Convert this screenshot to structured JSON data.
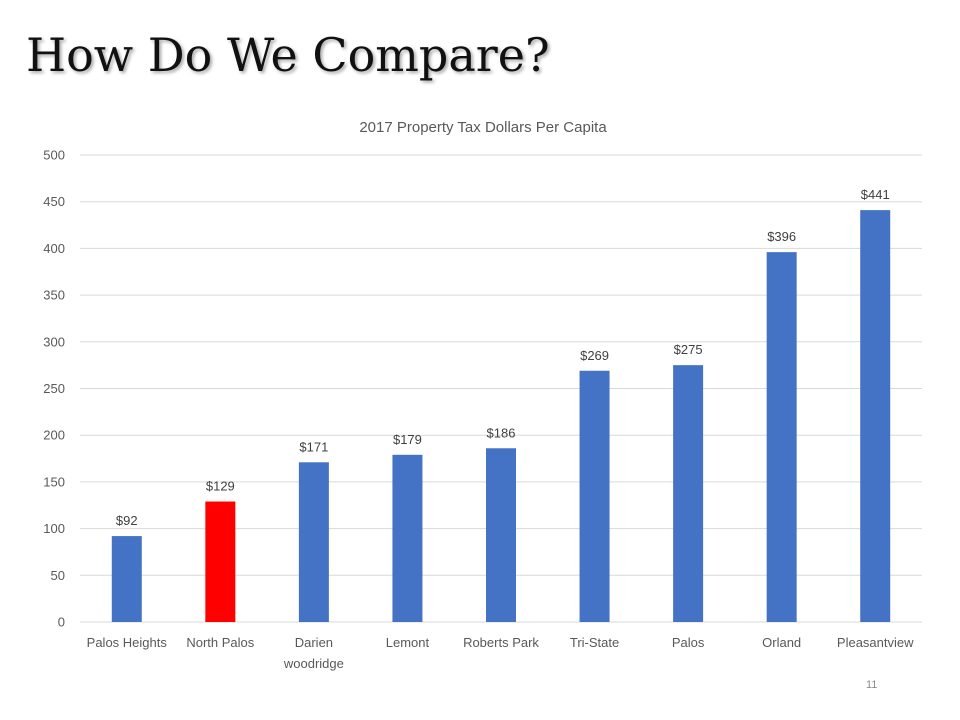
{
  "slide": {
    "title": "How Do We Compare?",
    "page_number": "11"
  },
  "colors": {
    "bar": "#4472C4",
    "highlight": "#FF0000",
    "grid": "#D9D9D9"
  },
  "chart_data": {
    "type": "bar",
    "title": "2017 Property Tax Dollars Per Capita",
    "xlabel": "",
    "ylabel": "",
    "categories": [
      [
        "Palos Heights"
      ],
      [
        "North Palos"
      ],
      [
        "Darien",
        "woodridge"
      ],
      [
        "Lemont"
      ],
      [
        "Roberts Park"
      ],
      [
        "Tri-State"
      ],
      [
        "Palos"
      ],
      [
        "Orland"
      ],
      [
        "Pleasantview"
      ]
    ],
    "values": [
      92,
      129,
      171,
      179,
      186,
      269,
      275,
      396,
      441
    ],
    "data_labels": [
      "$92",
      "$129",
      "$171",
      "$179",
      "$186",
      "$269",
      "$275",
      "$396",
      "$441"
    ],
    "highlight_category": "North Palos",
    "ylim": [
      0,
      500
    ],
    "yticks": [
      0,
      50,
      100,
      150,
      200,
      250,
      300,
      350,
      400,
      450,
      500
    ],
    "grid": true,
    "legend": "none"
  }
}
